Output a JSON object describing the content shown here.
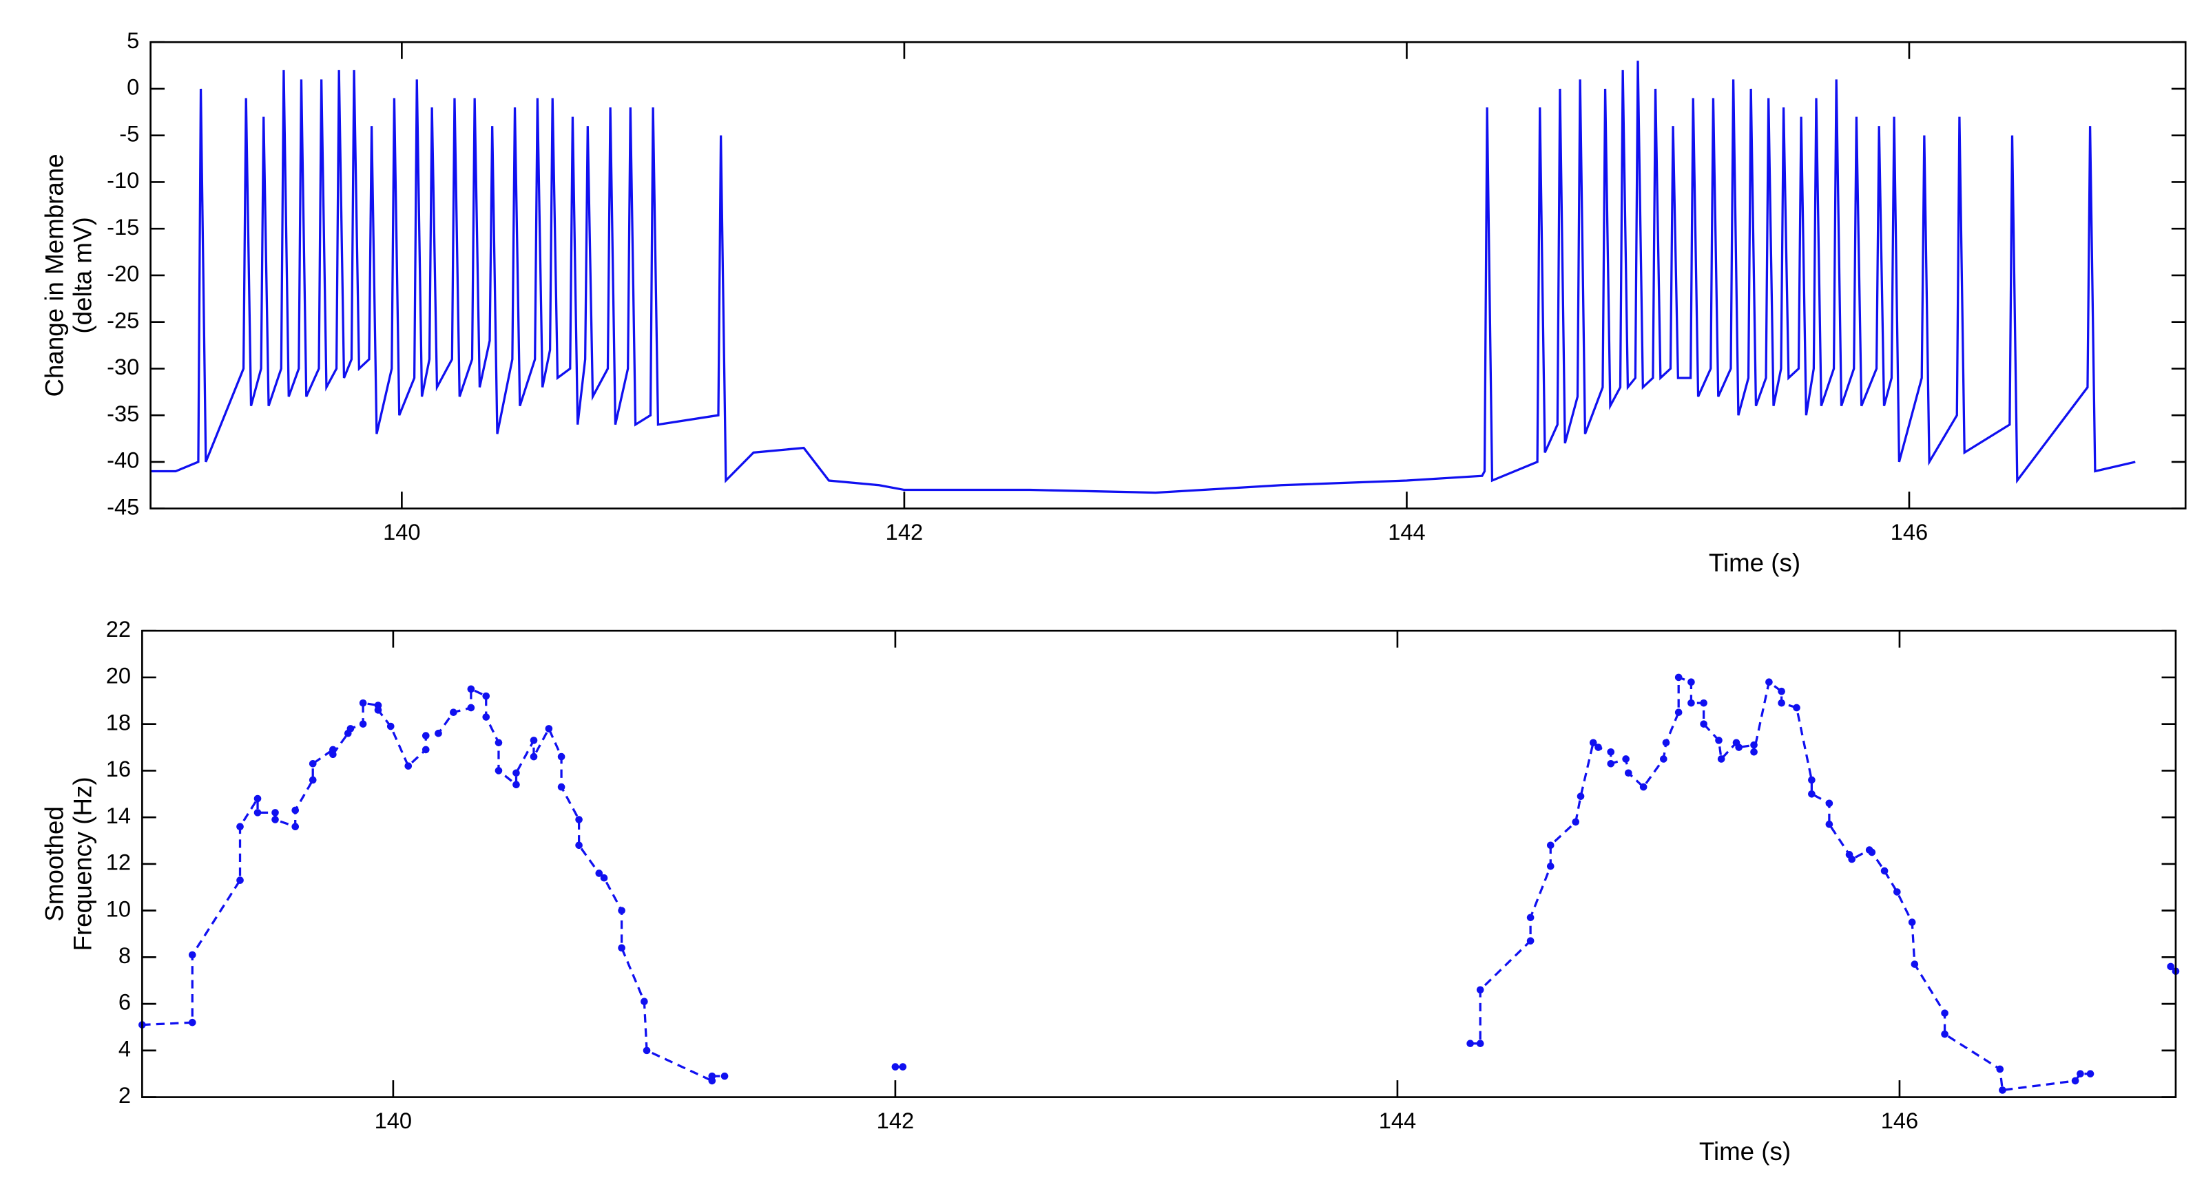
{
  "chart_data": [
    {
      "type": "line",
      "ylabel": [
        "Change in Membrane",
        "(delta mV)"
      ],
      "xlabel": "Time (s)",
      "xlim": [
        139,
        147.1
      ],
      "xticks": [
        140,
        142,
        144,
        146
      ],
      "ylim": [
        -45,
        5
      ],
      "yticks": [
        -45,
        -40,
        -35,
        -30,
        -25,
        -20,
        -15,
        -10,
        -5,
        0,
        5
      ],
      "linestyle": "solid",
      "markers": false,
      "series": [
        {
          "color": "#1010f0",
          "x": [
            139.0,
            139.1,
            139.19,
            139.2,
            139.22,
            139.37,
            139.38,
            139.4,
            139.44,
            139.45,
            139.47,
            139.52,
            139.53,
            139.55,
            139.59,
            139.6,
            139.62,
            139.67,
            139.68,
            139.7,
            139.74,
            139.75,
            139.77,
            139.8,
            139.81,
            139.83,
            139.87,
            139.88,
            139.9,
            139.96,
            139.97,
            139.99,
            140.05,
            140.06,
            140.08,
            140.11,
            140.12,
            140.14,
            140.2,
            140.21,
            140.23,
            140.28,
            140.29,
            140.31,
            140.35,
            140.36,
            140.38,
            140.44,
            140.45,
            140.47,
            140.53,
            140.54,
            140.56,
            140.59,
            140.6,
            140.62,
            140.67,
            140.68,
            140.7,
            140.73,
            140.74,
            140.76,
            140.82,
            140.83,
            140.85,
            140.9,
            140.91,
            140.93,
            140.99,
            141.0,
            141.02,
            141.26,
            141.27,
            141.29,
            141.4,
            141.6,
            141.7,
            141.9,
            142.0,
            142.5,
            143.0,
            143.5,
            144.0,
            144.3,
            144.31,
            144.32,
            144.34,
            144.52,
            144.53,
            144.55,
            144.6,
            144.61,
            144.63,
            144.68,
            144.69,
            144.71,
            144.78,
            144.79,
            144.81,
            144.85,
            144.86,
            144.88,
            144.91,
            144.92,
            144.94,
            144.98,
            144.99,
            145.01,
            145.05,
            145.06,
            145.08,
            145.13,
            145.14,
            145.16,
            145.21,
            145.22,
            145.24,
            145.29,
            145.3,
            145.32,
            145.36,
            145.37,
            145.39,
            145.43,
            145.44,
            145.46,
            145.49,
            145.5,
            145.52,
            145.56,
            145.57,
            145.59,
            145.62,
            145.63,
            145.65,
            145.7,
            145.71,
            145.73,
            145.78,
            145.79,
            145.81,
            145.87,
            145.88,
            145.9,
            145.93,
            145.94,
            145.96,
            146.05,
            146.06,
            146.08,
            146.19,
            146.2,
            146.22,
            146.4,
            146.41,
            146.43,
            146.71,
            146.72,
            146.74,
            146.9
          ],
          "values": [
            -41,
            -41,
            -40,
            0,
            -40,
            -30,
            -1,
            -34,
            -30,
            -3,
            -34,
            -30,
            2,
            -33,
            -30,
            1,
            -33,
            -30,
            1,
            -32,
            -30,
            2,
            -31,
            -29,
            2,
            -30,
            -29,
            -4,
            -37,
            -30,
            -1,
            -35,
            -31,
            1,
            -33,
            -29,
            -2,
            -32,
            -29,
            -1,
            -33,
            -29,
            -1,
            -32,
            -27,
            -4,
            -37,
            -29,
            -2,
            -34,
            -29,
            -1,
            -32,
            -28,
            -1,
            -31,
            -30,
            -3,
            -36,
            -29,
            -4,
            -33,
            -30,
            -2,
            -36,
            -30,
            -2,
            -36,
            -35,
            -2,
            -36,
            -35,
            -5,
            -42,
            -39,
            -38.5,
            -42,
            -42.5,
            -43,
            -43,
            -43.3,
            -42.5,
            -42,
            -41.5,
            -41,
            -2,
            -42,
            -40,
            -2,
            -39,
            -36,
            0,
            -38,
            -33,
            1,
            -37,
            -32,
            0,
            -34,
            -32,
            2,
            -32,
            -31,
            3,
            -32,
            -31,
            0,
            -31,
            -30,
            -4,
            -31,
            -31,
            -1,
            -33,
            -30,
            -1,
            -33,
            -30,
            1,
            -35,
            -31,
            0,
            -34,
            -31,
            -1,
            -34,
            -30,
            -2,
            -31,
            -30,
            -3,
            -35,
            -30,
            -1,
            -34,
            -30,
            1,
            -34,
            -30,
            -3,
            -34,
            -30,
            -4,
            -34,
            -31,
            -3,
            -40,
            -31,
            -5,
            -40,
            -35,
            -3,
            -39,
            -36,
            -5,
            -42,
            -32,
            -4,
            -41,
            -40
          ]
        }
      ]
    },
    {
      "type": "line",
      "ylabel": [
        "Smoothed",
        "Frequency (Hz)"
      ],
      "xlabel": "Time (s)",
      "xlim": [
        139,
        147.1
      ],
      "xticks": [
        140,
        142,
        144,
        146
      ],
      "ylim": [
        2,
        22
      ],
      "yticks": [
        2,
        4,
        6,
        8,
        10,
        12,
        14,
        16,
        18,
        20,
        22
      ],
      "linestyle": "dashed",
      "markers": true,
      "series": [
        {
          "color": "#1010f0",
          "x": [
            139.0,
            139.2,
            139.2,
            139.39,
            139.39,
            139.46,
            139.46,
            139.53,
            139.53,
            139.61,
            139.61,
            139.68,
            139.68,
            139.76,
            139.76,
            139.82,
            139.83,
            139.88,
            139.88,
            139.94,
            139.94,
            139.99,
            140.06,
            140.13,
            140.13,
            140.18,
            140.24,
            140.31,
            140.31,
            140.37,
            140.37,
            140.42,
            140.42,
            140.49,
            140.49,
            140.56,
            140.56,
            140.62,
            140.67,
            140.67,
            140.74,
            140.74,
            140.82,
            140.84,
            140.91,
            140.91,
            141.0,
            141.01,
            141.27,
            141.27,
            141.32,
            null,
            142.0,
            142.03,
            null,
            144.29,
            144.33,
            144.33,
            144.53,
            144.53,
            144.61,
            144.61,
            144.71,
            144.73,
            144.78,
            144.8,
            144.85,
            144.85,
            144.91,
            144.92,
            144.98,
            145.06,
            145.07,
            145.12,
            145.12,
            145.17,
            145.17,
            145.22,
            145.22,
            145.28,
            145.29,
            145.35,
            145.36,
            145.42,
            145.42,
            145.48,
            145.53,
            145.53,
            145.59,
            145.65,
            145.65,
            145.72,
            145.72,
            145.8,
            145.81,
            145.88,
            145.89,
            145.94,
            145.99,
            146.05,
            146.06,
            146.18,
            146.18,
            146.4,
            146.41,
            146.7,
            146.72,
            146.76,
            null,
            147.08,
            147.1
          ],
          "values": [
            5.1,
            5.2,
            8.1,
            11.3,
            13.6,
            14.8,
            14.2,
            14.2,
            13.9,
            13.6,
            14.3,
            15.6,
            16.3,
            16.9,
            16.7,
            17.6,
            17.8,
            18.0,
            18.9,
            18.8,
            18.6,
            17.9,
            16.2,
            16.9,
            17.5,
            17.6,
            18.5,
            18.7,
            19.5,
            19.2,
            18.3,
            17.2,
            16.0,
            15.4,
            15.9,
            17.3,
            16.6,
            17.8,
            16.6,
            15.3,
            13.9,
            12.8,
            11.6,
            11.4,
            10.0,
            8.4,
            6.1,
            4.0,
            2.7,
            2.9,
            2.9,
            null,
            3.3,
            3.3,
            null,
            4.3,
            4.3,
            6.6,
            8.7,
            9.7,
            11.9,
            12.8,
            13.8,
            14.9,
            17.2,
            17.0,
            16.8,
            16.3,
            16.5,
            15.9,
            15.3,
            16.5,
            17.2,
            18.5,
            20.0,
            19.8,
            18.9,
            18.9,
            18.0,
            17.3,
            16.5,
            17.2,
            17.0,
            17.1,
            16.8,
            19.8,
            19.4,
            18.9,
            18.7,
            15.6,
            15.0,
            14.6,
            13.7,
            12.4,
            12.2,
            12.6,
            12.5,
            11.7,
            10.8,
            9.5,
            7.7,
            5.6,
            4.7,
            3.2,
            2.3,
            2.7,
            3.0,
            3.0,
            null,
            7.6,
            7.4
          ]
        }
      ]
    }
  ]
}
